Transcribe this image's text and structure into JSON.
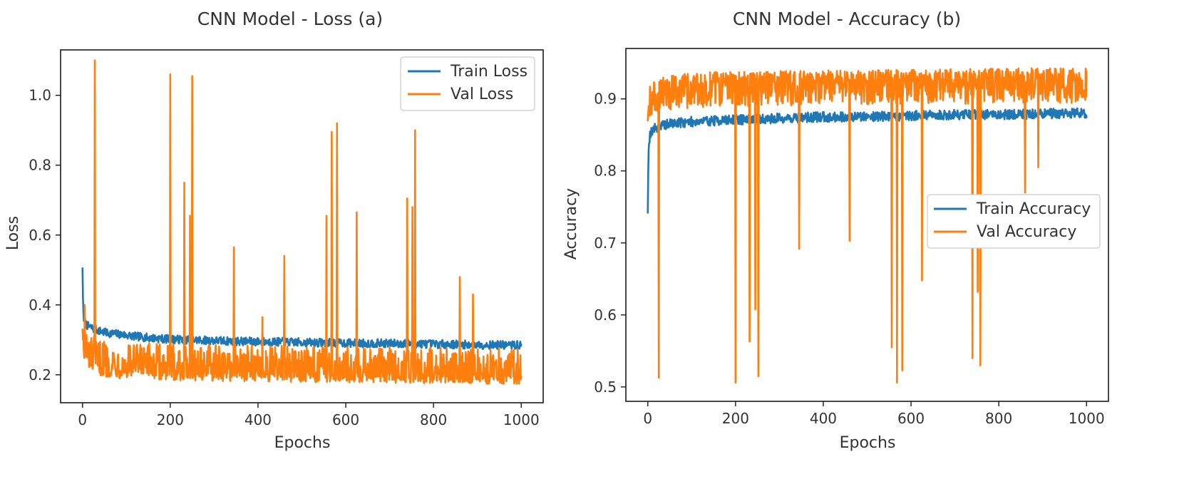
{
  "chart_data": [
    {
      "type": "line",
      "title": "CNN Model - Loss (a)",
      "xlabel": "Epochs",
      "ylabel": "Loss",
      "xlim": [
        -50,
        1050
      ],
      "ylim": [
        0.12,
        1.13
      ],
      "xticks": [
        0,
        200,
        400,
        600,
        800,
        1000
      ],
      "xtick_labels": [
        "0",
        "200",
        "400",
        "600",
        "800",
        "1000"
      ],
      "yticks": [
        0.2,
        0.4,
        0.6,
        0.8,
        1.0
      ],
      "ytick_labels": [
        "0.2",
        "0.4",
        "0.6",
        "0.8",
        "1.0"
      ],
      "legend_position": "top-right",
      "series": [
        {
          "name": "Train Loss",
          "color": "#1f77b4",
          "x": [
            0,
            1,
            2,
            3,
            5,
            8,
            12,
            20,
            30,
            40,
            55,
            70,
            90,
            120,
            160,
            200,
            250,
            300,
            350,
            400,
            450,
            500,
            550,
            600,
            650,
            700,
            750,
            800,
            850,
            900,
            950,
            1000
          ],
          "values": [
            0.505,
            0.42,
            0.38,
            0.36,
            0.35,
            0.345,
            0.34,
            0.335,
            0.33,
            0.325,
            0.32,
            0.318,
            0.315,
            0.31,
            0.305,
            0.302,
            0.3,
            0.298,
            0.296,
            0.295,
            0.294,
            0.293,
            0.292,
            0.291,
            0.29,
            0.29,
            0.289,
            0.288,
            0.287,
            0.286,
            0.285,
            0.285
          ]
        },
        {
          "name": "Val Loss",
          "color": "#ff7f0e",
          "x": [
            0,
            1,
            2,
            3,
            5,
            8,
            12,
            20,
            30,
            40,
            55,
            70,
            90,
            120,
            160,
            200,
            250,
            300,
            350,
            400,
            450,
            500,
            550,
            600,
            650,
            700,
            750,
            800,
            850,
            900,
            950,
            1000
          ],
          "values": [
            0.33,
            0.3,
            0.31,
            0.28,
            0.27,
            0.26,
            0.25,
            0.24,
            0.235,
            0.23,
            0.225,
            0.225,
            0.22,
            0.22,
            0.218,
            0.216,
            0.215,
            0.214,
            0.213,
            0.212,
            0.212,
            0.211,
            0.21,
            0.21,
            0.209,
            0.208,
            0.208,
            0.207,
            0.207,
            0.206,
            0.206,
            0.205
          ],
          "spikes": [
            [
              5,
              0.4
            ],
            [
              28,
              1.1
            ],
            [
              200,
              1.06
            ],
            [
              232,
              0.75
            ],
            [
              245,
              0.655
            ],
            [
              250,
              1.055
            ],
            [
              345,
              0.565
            ],
            [
              410,
              0.365
            ],
            [
              460,
              0.54
            ],
            [
              556,
              0.655
            ],
            [
              568,
              0.895
            ],
            [
              580,
              0.92
            ],
            [
              625,
              0.665
            ],
            [
              740,
              0.705
            ],
            [
              752,
              0.68
            ],
            [
              758,
              0.9
            ],
            [
              860,
              0.48
            ],
            [
              890,
              0.43
            ]
          ]
        }
      ]
    },
    {
      "type": "line",
      "title": "CNN Model -  Accuracy (b)",
      "xlabel": "Epochs",
      "ylabel": "Accuracy",
      "xlim": [
        -50,
        1050
      ],
      "ylim": [
        0.48,
        0.97
      ],
      "xticks": [
        0,
        200,
        400,
        600,
        800,
        1000
      ],
      "xtick_labels": [
        "0",
        "200",
        "400",
        "600",
        "800",
        "1000"
      ],
      "yticks": [
        0.5,
        0.6,
        0.7,
        0.8,
        0.9
      ],
      "ytick_labels": [
        "0.5",
        "0.6",
        "0.7",
        "0.8",
        "0.9"
      ],
      "legend_position": "center-right",
      "series": [
        {
          "name": "Train Accuracy",
          "color": "#1f77b4",
          "x": [
            0,
            1,
            2,
            3,
            5,
            8,
            12,
            20,
            30,
            40,
            55,
            70,
            90,
            120,
            160,
            200,
            250,
            300,
            350,
            400,
            450,
            500,
            550,
            600,
            650,
            700,
            750,
            800,
            850,
            900,
            950,
            1000
          ],
          "values": [
            0.742,
            0.8,
            0.83,
            0.842,
            0.85,
            0.855,
            0.858,
            0.86,
            0.862,
            0.864,
            0.866,
            0.867,
            0.868,
            0.869,
            0.87,
            0.871,
            0.872,
            0.873,
            0.874,
            0.875,
            0.875,
            0.876,
            0.876,
            0.877,
            0.877,
            0.878,
            0.878,
            0.878,
            0.879,
            0.879,
            0.88,
            0.88
          ]
        },
        {
          "name": "Val Accuracy",
          "color": "#ff7f0e",
          "x": [
            0,
            1,
            2,
            3,
            5,
            8,
            12,
            20,
            30,
            40,
            55,
            70,
            90,
            120,
            160,
            200,
            250,
            300,
            350,
            400,
            450,
            500,
            550,
            600,
            650,
            700,
            750,
            800,
            850,
            900,
            950,
            1000
          ],
          "values": [
            0.87,
            0.88,
            0.89,
            0.895,
            0.9,
            0.905,
            0.908,
            0.91,
            0.912,
            0.914,
            0.916,
            0.917,
            0.918,
            0.919,
            0.92,
            0.92,
            0.921,
            0.921,
            0.922,
            0.922,
            0.922,
            0.923,
            0.923,
            0.923,
            0.924,
            0.924,
            0.924,
            0.925,
            0.925,
            0.925,
            0.925,
            0.925
          ],
          "spikes": [
            [
              25,
              0.513
            ],
            [
              200,
              0.506
            ],
            [
              232,
              0.563
            ],
            [
              245,
              0.608
            ],
            [
              252,
              0.515
            ],
            [
              345,
              0.692
            ],
            [
              460,
              0.703
            ],
            [
              556,
              0.555
            ],
            [
              568,
              0.506
            ],
            [
              580,
              0.523
            ],
            [
              625,
              0.648
            ],
            [
              740,
              0.54
            ],
            [
              752,
              0.632
            ],
            [
              758,
              0.53
            ],
            [
              860,
              0.77
            ],
            [
              890,
              0.805
            ]
          ]
        }
      ]
    }
  ]
}
